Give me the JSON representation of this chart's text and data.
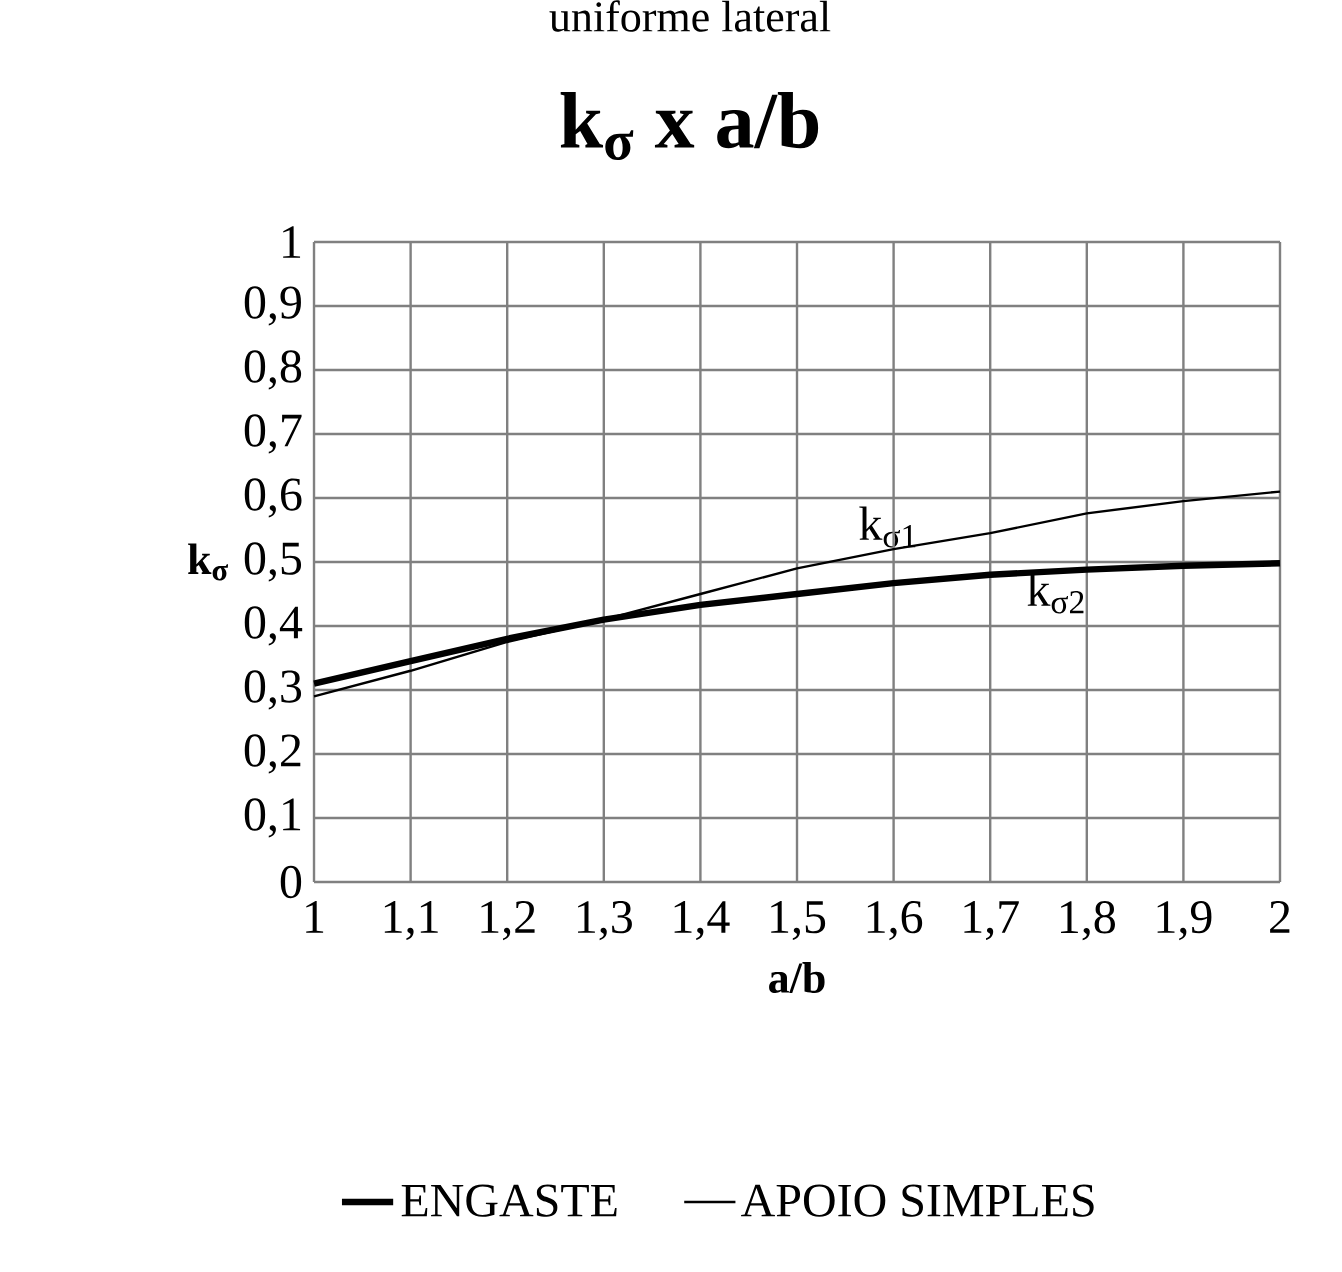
{
  "chart_data": {
    "type": "line",
    "title": "k$_{σ}$ x a/b",
    "xlabel": "a/b",
    "ylabel": "k$_{σ}$",
    "x": [
      1,
      1.1,
      1.2,
      1.3,
      1.4,
      1.5,
      1.6,
      1.7,
      1.8,
      1.9,
      2
    ],
    "series": [
      {
        "name": "ENGASTE",
        "color": "#000000",
        "values": [
          0.31,
          0.345,
          0.38,
          0.41,
          0.433,
          0.45,
          0.467,
          0.48,
          0.488,
          0.494,
          0.498
        ]
      },
      {
        "name": "APOIO SIMPLES",
        "color": "#000000",
        "values": [
          0.29,
          0.33,
          0.375,
          0.41,
          0.45,
          0.49,
          0.52,
          0.545,
          0.576,
          0.595,
          0.61
        ]
      }
    ],
    "xlim": [
      1,
      2
    ],
    "ylim": [
      0,
      1
    ],
    "xticks": [
      1,
      {
        "value": 1.1,
        "label": "1,1"
      },
      {
        "value": 1.2,
        "label": "1,2"
      },
      {
        "value": 1.3,
        "label": "1,3"
      },
      {
        "value": 1.4,
        "label": "1,4"
      },
      {
        "value": 1.5,
        "label": "1,5"
      },
      {
        "value": 1.6,
        "label": "1,6"
      },
      {
        "value": 1.7,
        "label": "1,7"
      },
      {
        "value": 1.8,
        "label": "1,8"
      },
      {
        "value": 1.9,
        "label": "1,9"
      },
      2
    ],
    "yticks": [
      0,
      {
        "value": 0.1,
        "label": "0,1"
      },
      {
        "value": 0.2,
        "label": "0,2"
      },
      {
        "value": 0.3,
        "label": "0,3"
      },
      {
        "value": 0.4,
        "label": "0,4"
      },
      {
        "value": 0.5,
        "label": "0,5"
      },
      {
        "value": 0.6,
        "label": "0,6"
      },
      {
        "value": 0.7,
        "label": "0,7"
      },
      {
        "value": 0.8,
        "label": "0,8"
      },
      {
        "value": 0.9,
        "label": "0,9"
      },
      1
    ],
    "grid": true,
    "legend": "bottom",
    "annotations": [
      "uniforme lateral",
      "k$_{σ1}$",
      "k$_{σ2}$"
    ]
  }
}
